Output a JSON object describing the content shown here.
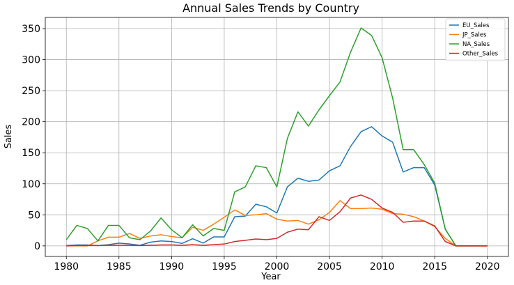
{
  "chart_data": {
    "type": "line",
    "title": "Annual Sales Trends by Country",
    "xlabel": "Year",
    "ylabel": "Sales",
    "xlim": [
      1978,
      2022
    ],
    "ylim": [
      -17,
      368
    ],
    "xticks": [
      1980,
      1985,
      1990,
      1995,
      2000,
      2005,
      2010,
      2015,
      2020
    ],
    "yticks": [
      0,
      50,
      100,
      150,
      200,
      250,
      300,
      350
    ],
    "grid": true,
    "legend_position": "top-right",
    "x": [
      1980,
      1981,
      1982,
      1983,
      1984,
      1985,
      1986,
      1987,
      1988,
      1989,
      1990,
      1991,
      1992,
      1993,
      1994,
      1995,
      1996,
      1997,
      1998,
      1999,
      2000,
      2001,
      2002,
      2003,
      2004,
      2005,
      2006,
      2007,
      2008,
      2009,
      2010,
      2011,
      2012,
      2013,
      2014,
      2015,
      2016,
      2017,
      2018,
      2019,
      2020
    ],
    "series": [
      {
        "name": "EU_Sales",
        "color": "#1f77b4",
        "values": [
          0.5,
          1.5,
          1.5,
          0.5,
          2,
          4.5,
          3,
          1,
          6,
          8,
          7,
          4,
          11.5,
          4.5,
          14.5,
          14.5,
          47,
          48,
          67,
          63,
          53,
          95,
          109,
          104,
          106,
          121,
          129,
          160,
          184,
          192,
          177,
          167,
          119,
          126,
          126,
          98,
          27,
          0,
          0,
          0,
          0
        ]
      },
      {
        "name": "JP_Sales",
        "color": "#ff7f0e",
        "values": [
          0,
          0,
          0,
          8,
          14,
          14,
          20,
          12,
          16,
          18,
          15,
          13,
          30,
          25,
          35,
          46,
          58,
          49,
          50,
          52,
          43,
          40,
          41,
          35,
          42,
          54,
          73,
          60,
          60,
          61,
          59,
          52,
          51,
          47,
          40,
          31,
          12,
          0,
          0,
          0,
          0
        ]
      },
      {
        "name": "NA_Sales",
        "color": "#2ca02c",
        "values": [
          10,
          33,
          28,
          8,
          33,
          33,
          13,
          10,
          24,
          45,
          26,
          13,
          34,
          16,
          28,
          25,
          87,
          95,
          129,
          126,
          95,
          173,
          216,
          193,
          219,
          242,
          264,
          312,
          351,
          339,
          303,
          238,
          155,
          155,
          131,
          101,
          27,
          0,
          0,
          0,
          0
        ]
      },
      {
        "name": "Other_Sales",
        "color": "#d62728",
        "values": [
          0,
          0.5,
          0.5,
          0.5,
          1,
          1,
          1,
          0.5,
          1,
          1.5,
          1.5,
          1,
          2,
          1,
          2,
          3,
          7,
          9,
          11,
          10,
          12,
          22,
          27,
          26,
          47,
          41,
          55,
          77,
          82,
          75,
          61,
          54,
          38,
          40,
          40,
          32,
          7,
          0,
          0,
          0,
          0
        ]
      }
    ]
  }
}
